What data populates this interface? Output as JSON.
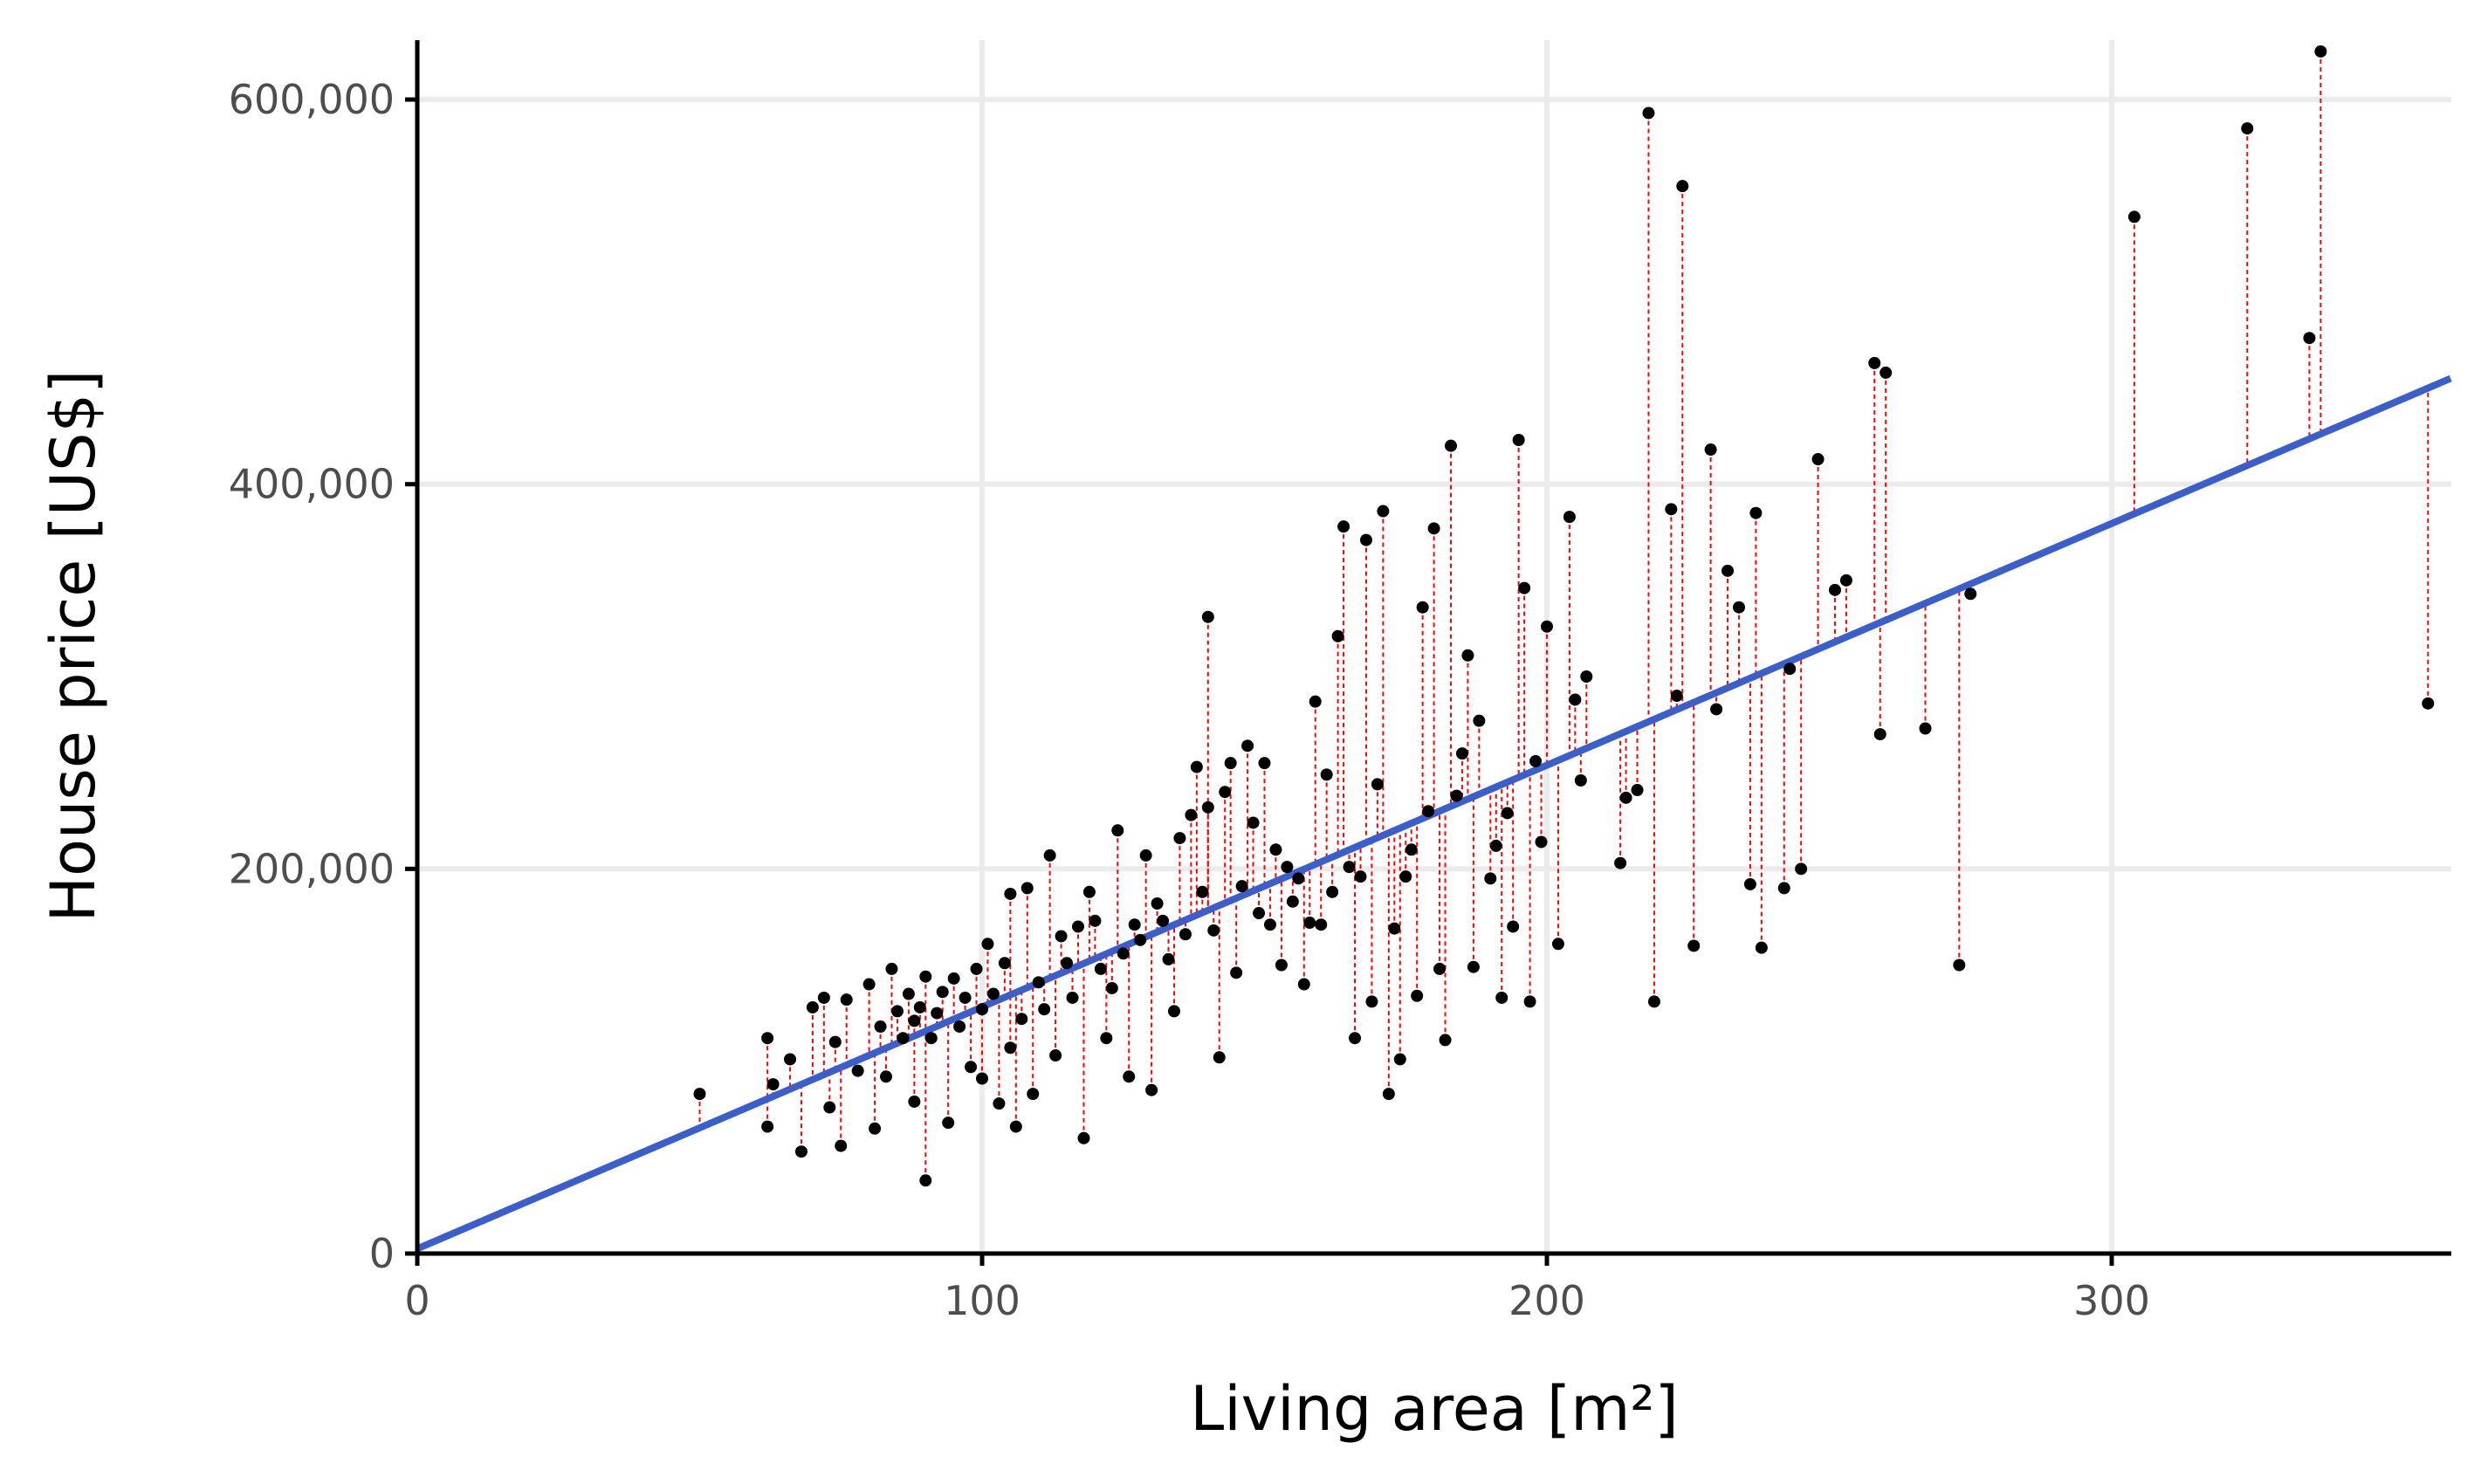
{
  "chart_data": {
    "type": "scatter",
    "xlabel": "Living area [m²]",
    "ylabel": "House price [US$]",
    "xlim": [
      0,
      360
    ],
    "ylim": [
      0,
      627000
    ],
    "x_ticks": [
      0,
      100,
      200,
      300
    ],
    "x_tick_labels": [
      "0",
      "100",
      "200",
      "300"
    ],
    "y_ticks": [
      0,
      200000,
      400000,
      600000
    ],
    "y_tick_labels": [
      "0",
      "200,000",
      "400,000",
      "600,000"
    ],
    "grid": true,
    "legend": "none",
    "colors": {
      "points": "#000000",
      "fit_line": "#3a5fcd",
      "residuals": "#ff0000",
      "grid": "#ebebeb",
      "axis": "#000000"
    },
    "series": [
      {
        "type": "line",
        "x": [
          0,
          360
        ],
        "y": [
          2500,
          455000
        ]
      },
      {
        "type": "scatter",
        "x": [
          50,
          62,
          62,
          63,
          66,
          68,
          70,
          72,
          73,
          74,
          75,
          76,
          78,
          80,
          81,
          82,
          83,
          84,
          85,
          86,
          87,
          88,
          88,
          89,
          90,
          90,
          91,
          92,
          93,
          94,
          95,
          96,
          97,
          98,
          99,
          100,
          100,
          101,
          102,
          103,
          104,
          105,
          105,
          106,
          107,
          108,
          109,
          110,
          111,
          112,
          113,
          114,
          115,
          116,
          117,
          118,
          119,
          120,
          121,
          122,
          123,
          124,
          125,
          126,
          127,
          128,
          129,
          130,
          131,
          132,
          133,
          134,
          135,
          136,
          137,
          138,
          139,
          140,
          140,
          141,
          142,
          143,
          144,
          145,
          146,
          147,
          148,
          149,
          150,
          151,
          152,
          153,
          154,
          155,
          156,
          157,
          158,
          159,
          160,
          161,
          162,
          163,
          164,
          165,
          166,
          167,
          168,
          169,
          170,
          171,
          172,
          173,
          174,
          175,
          176,
          177,
          178,
          179,
          180,
          181,
          182,
          183,
          184,
          185,
          186,
          187,
          188,
          190,
          191,
          192,
          193,
          194,
          195,
          196,
          197,
          198,
          199,
          200,
          202,
          204,
          205,
          206,
          207,
          213,
          214,
          216,
          218,
          219,
          222,
          223,
          224,
          226,
          229,
          230,
          232,
          234,
          236,
          237,
          238,
          242,
          243,
          245,
          248,
          251,
          253,
          258,
          259,
          260,
          267,
          273,
          275,
          304,
          324,
          335,
          337,
          356
        ],
        "y": [
          83000,
          112000,
          66000,
          88000,
          101000,
          53000,
          128000,
          133000,
          76000,
          110000,
          56000,
          132000,
          95000,
          140000,
          65000,
          118000,
          92000,
          148000,
          126000,
          112000,
          135000,
          79000,
          121000,
          128000,
          38000,
          144000,
          112000,
          125000,
          136000,
          68000,
          143000,
          118000,
          133000,
          97000,
          148000,
          91000,
          127000,
          161000,
          135000,
          78000,
          151000,
          187000,
          107000,
          66000,
          122000,
          190000,
          83000,
          141000,
          127000,
          207000,
          103000,
          165000,
          151000,
          133000,
          170000,
          60000,
          188000,
          173000,
          148000,
          112000,
          138000,
          220000,
          156000,
          92000,
          171000,
          163000,
          207000,
          85000,
          182000,
          173000,
          153000,
          126000,
          216000,
          166000,
          228000,
          253000,
          188000,
          232000,
          331000,
          168000,
          102000,
          240000,
          255000,
          146000,
          191000,
          264000,
          224000,
          177000,
          255000,
          171000,
          210000,
          150000,
          201000,
          183000,
          195000,
          140000,
          172000,
          287000,
          171000,
          249000,
          188000,
          321000,
          378000,
          201000,
          112000,
          196000,
          371000,
          131000,
          244000,
          386000,
          83000,
          169000,
          101000,
          196000,
          210000,
          134000,
          336000,
          230000,
          377000,
          148000,
          111000,
          420000,
          238000,
          260000,
          311000,
          149000,
          277000,
          195000,
          212000,
          133000,
          229000,
          170000,
          423000,
          346000,
          131000,
          256000,
          214000,
          326000,
          161000,
          383000,
          288000,
          246000,
          300000,
          203000,
          237000,
          241000,
          593000,
          131000,
          387000,
          290000,
          555000,
          160000,
          418000,
          283000,
          355000,
          336000,
          192000,
          385000,
          159000,
          190000,
          304000,
          200000,
          413000,
          345000,
          350000,
          463000,
          270000,
          458000,
          273000,
          150000,
          343000,
          539000,
          585000,
          476000,
          625000,
          286000
        ]
      }
    ]
  }
}
